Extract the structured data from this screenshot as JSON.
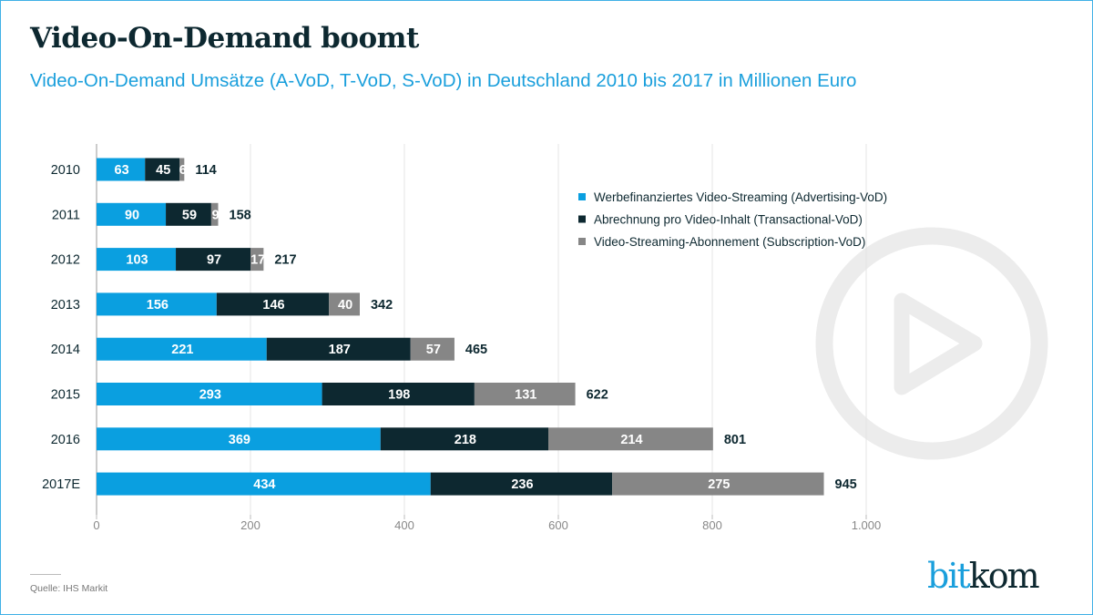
{
  "title": "Video-On-Demand boomt",
  "subtitle": "Video-On-Demand Umsätze (A-VoD, T-VoD, S-VoD) in Deutschland 2010 bis 2017 in Millionen Euro",
  "source": "Quelle: IHS Markit",
  "logo": {
    "part1": "bit",
    "part2": "kom"
  },
  "watermark_icon": "play-circle-icon",
  "chart_data": {
    "type": "bar",
    "orientation": "horizontal",
    "stacked": true,
    "categories": [
      "2010",
      "2011",
      "2012",
      "2013",
      "2014",
      "2015",
      "2016",
      "2017E"
    ],
    "series": [
      {
        "name": "Werbefinanziertes Video-Streaming (Advertising-VoD)",
        "color": "#0a9fe0",
        "values": [
          63,
          90,
          103,
          156,
          221,
          293,
          369,
          434
        ]
      },
      {
        "name": "Abrechnung pro Video-Inhalt (Transactional-VoD)",
        "color": "#0d2830",
        "values": [
          45,
          59,
          97,
          146,
          187,
          198,
          218,
          236
        ]
      },
      {
        "name": "Video-Streaming-Abonnement (Subscription-VoD)",
        "color": "#868686",
        "values": [
          6,
          9,
          17,
          40,
          57,
          131,
          214,
          275
        ]
      }
    ],
    "totals": [
      114,
      158,
      217,
      342,
      465,
      622,
      801,
      945
    ],
    "xlim": [
      0,
      1000
    ],
    "xticks": [
      0,
      200,
      400,
      600,
      800,
      1000
    ],
    "xtick_labels": [
      "0",
      "200",
      "400",
      "600",
      "800",
      "1.000"
    ],
    "grid": true,
    "legend_position": "top-right"
  }
}
